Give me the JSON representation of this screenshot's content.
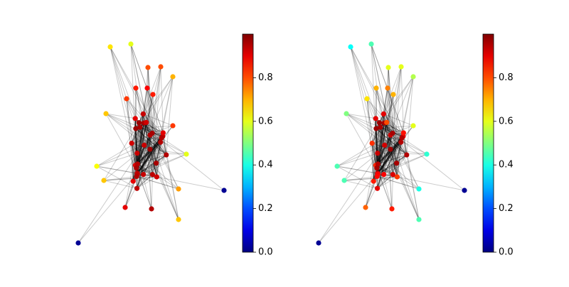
{
  "chart_data": [
    {
      "type": "network",
      "colormap": "jet",
      "clim": [
        0,
        1
      ],
      "cticks": [
        {
          "value": 0,
          "label": "0.0"
        },
        {
          "value": 0.2,
          "label": "0.2"
        },
        {
          "value": 0.4,
          "label": "0.4"
        },
        {
          "value": 0.6,
          "label": "0.6"
        },
        {
          "value": 0.8,
          "label": "0.8"
        }
      ],
      "values": [
        0.65,
        0.6,
        0.8,
        0.8,
        0.7,
        0.85,
        0.88,
        0.85,
        0.82,
        0.68,
        0.82,
        0.6,
        0.62,
        0.68,
        0.72,
        0.02,
        0.9,
        0.95,
        0.68,
        0.02,
        0.95,
        0.93,
        0.96,
        0.94,
        0.92,
        0.97,
        0.95,
        0.9,
        0.93,
        0.96,
        0.94,
        0.92,
        0.95,
        0.97,
        0.9,
        0.93,
        0.96,
        0.94,
        0.91,
        0.95,
        0.93,
        0.96,
        0.92,
        0.95,
        0.97,
        0.94,
        0.9,
        0.93,
        0.96,
        0.95
      ]
    },
    {
      "type": "network",
      "colormap": "jet",
      "clim": [
        0,
        1
      ],
      "cticks": [
        {
          "value": 0,
          "label": "0.0"
        },
        {
          "value": 0.2,
          "label": "0.2"
        },
        {
          "value": 0.4,
          "label": "0.4"
        },
        {
          "value": 0.6,
          "label": "0.6"
        },
        {
          "value": 0.8,
          "label": "0.8"
        }
      ],
      "values": [
        0.38,
        0.45,
        0.6,
        0.6,
        0.55,
        0.7,
        0.75,
        0.7,
        0.65,
        0.5,
        0.6,
        0.42,
        0.45,
        0.45,
        0.4,
        0.02,
        0.78,
        0.85,
        0.45,
        0.02,
        0.95,
        0.88,
        0.96,
        0.9,
        0.8,
        0.97,
        0.93,
        0.85,
        0.92,
        0.96,
        0.9,
        0.82,
        0.95,
        0.97,
        0.86,
        0.93,
        0.96,
        0.91,
        0.84,
        0.95,
        0.9,
        0.96,
        0.83,
        0.95,
        0.97,
        0.88,
        0.9,
        0.93,
        0.96,
        0.87
      ]
    }
  ]
}
